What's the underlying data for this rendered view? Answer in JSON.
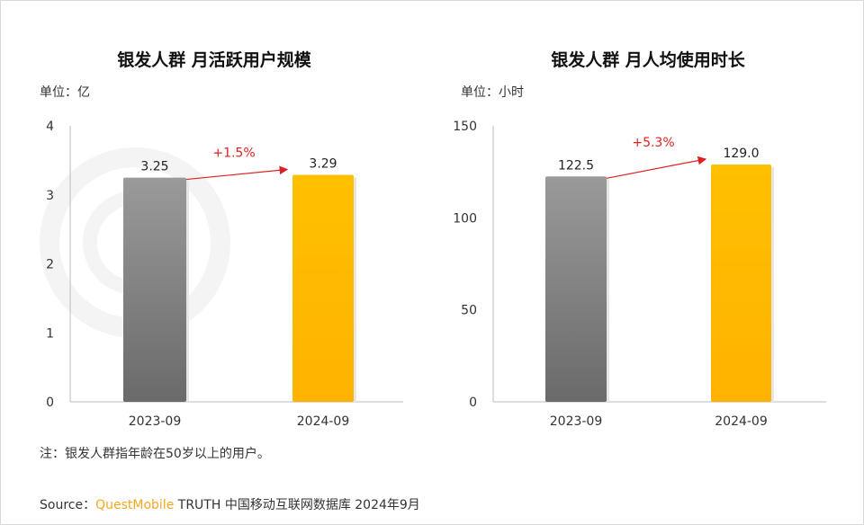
{
  "charts_meta": {
    "note": "注：银发人群指年龄在50岁以上的用户。",
    "source_prefix": "Source：",
    "source_brand": "QuestMobile",
    "source_rest": " TRUTH 中国移动互联网数据库 2024年9月",
    "watermark": "QUEST MOBILE"
  },
  "chart_data": [
    {
      "type": "bar",
      "title": "银发人群 月活跃用户规模",
      "unit": "单位：亿",
      "categories": [
        "2023-09",
        "2024-09"
      ],
      "values": [
        3.25,
        3.29
      ],
      "data_labels": [
        "3.25",
        "3.29"
      ],
      "ylim": [
        0,
        4
      ],
      "yticks": [
        "0",
        "1",
        "2",
        "3",
        "4"
      ],
      "growth_label": "+1.5%",
      "colors": [
        "#8c8c8c",
        "#ffc000"
      ],
      "grid": false
    },
    {
      "type": "bar",
      "title": "银发人群 月人均使用时长",
      "unit": "单位：小时",
      "categories": [
        "2023-09",
        "2024-09"
      ],
      "values": [
        122.5,
        129.0
      ],
      "data_labels": [
        "122.5",
        "129.0"
      ],
      "ylim": [
        0,
        150
      ],
      "yticks": [
        "0",
        "50",
        "100",
        "150"
      ],
      "growth_label": "+5.3%",
      "colors": [
        "#8c8c8c",
        "#ffc000"
      ],
      "grid": false
    }
  ]
}
